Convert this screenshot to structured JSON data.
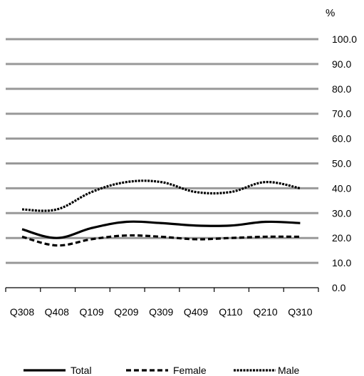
{
  "chart_data": {
    "type": "line",
    "unit": "%",
    "categories": [
      "Q308",
      "Q408",
      "Q109",
      "Q209",
      "Q309",
      "Q409",
      "Q110",
      "Q210",
      "Q310"
    ],
    "ylim": [
      0,
      100
    ],
    "yticks": [
      "100.0",
      "90.0",
      "80.0",
      "70.0",
      "60.0",
      "50.0",
      "40.0",
      "30.0",
      "20.0",
      "10.0",
      "0.0"
    ],
    "grid": true,
    "y_axis_position": "right",
    "legend_position": "bottom",
    "series": [
      {
        "name": "Total",
        "values": [
          23.5,
          20.0,
          24.0,
          26.5,
          26.0,
          25.0,
          25.0,
          26.5,
          26.0
        ],
        "color": "#000000",
        "style": "solid"
      },
      {
        "name": "Female",
        "values": [
          20.5,
          17.0,
          19.5,
          21.0,
          20.5,
          19.5,
          20.0,
          20.5,
          20.5
        ],
        "color": "#000000",
        "style": "dashed"
      },
      {
        "name": "Male",
        "values": [
          31.5,
          31.5,
          38.5,
          42.5,
          42.5,
          38.5,
          38.5,
          42.5,
          40.0
        ],
        "color": "#000000",
        "style": "dotted-dense"
      }
    ],
    "colors": {
      "grid": "#999999",
      "axis": "#000000",
      "background": "#ffffff"
    }
  }
}
